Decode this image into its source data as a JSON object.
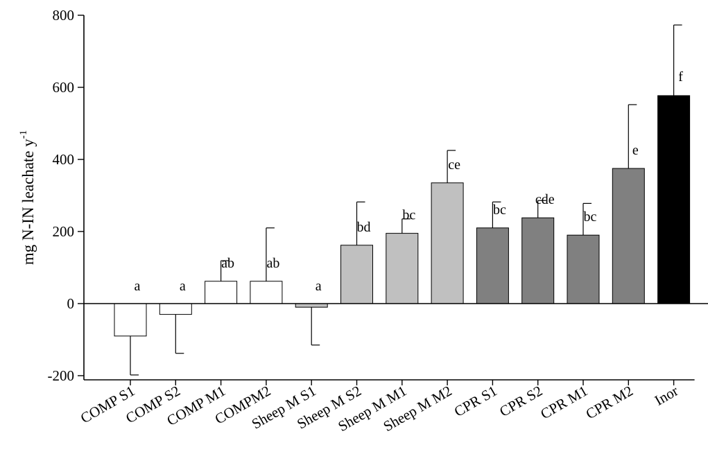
{
  "chart_data": {
    "type": "bar",
    "title": "",
    "xlabel": "",
    "ylabel": {
      "main": "mg N-IN leachate y",
      "superscript": "-1"
    },
    "ylim": [
      -220,
      800
    ],
    "yticks": [
      -200,
      0,
      200,
      400,
      600,
      800
    ],
    "grid": false,
    "legend": "none",
    "categories": [
      "COMP S1",
      "COMP S2",
      "COMP M1",
      "COMPM2",
      "Sheep M S1",
      "Sheep M S2",
      "Sheep M M1",
      "Sheep M M2",
      "CPR S1",
      "CPR S2",
      "CPR M1",
      "CPR M2",
      "Inor"
    ],
    "values": [
      -90,
      -30,
      62,
      62,
      -10,
      162,
      195,
      335,
      210,
      238,
      190,
      375,
      577
    ],
    "errors": [
      108,
      108,
      57,
      148,
      105,
      120,
      40,
      90,
      72,
      48,
      88,
      177,
      196
    ],
    "significance_letters": [
      "a",
      "a",
      "ab",
      "ab",
      "a",
      "bd",
      "bc",
      "ce",
      "bc",
      "cde",
      "bc",
      "e",
      "f"
    ],
    "bar_colors": [
      "#ffffff",
      "#ffffff",
      "#ffffff",
      "#ffffff",
      "#c0c0c0",
      "#c0c0c0",
      "#c0c0c0",
      "#c0c0c0",
      "#808080",
      "#808080",
      "#808080",
      "#808080",
      "#000000"
    ]
  }
}
